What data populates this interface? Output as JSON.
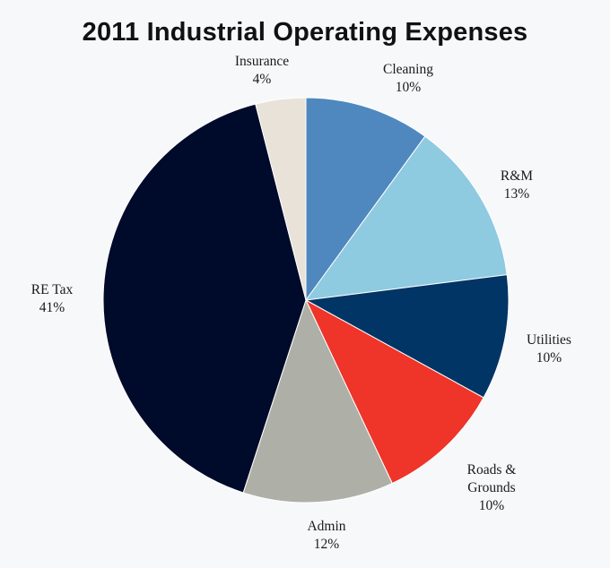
{
  "chart_data": {
    "type": "pie",
    "title": "2011 Industrial Operating Expenses",
    "start_angle_deg": 0,
    "direction": "clockwise",
    "slices": [
      {
        "label_lines": [
          "Cleaning"
        ],
        "percent_label": "10%",
        "value": 10,
        "color": "#4f88be"
      },
      {
        "label_lines": [
          "R&M"
        ],
        "percent_label": "13%",
        "value": 13,
        "color": "#8ecae0"
      },
      {
        "label_lines": [
          "Utilities"
        ],
        "percent_label": "10%",
        "value": 10,
        "color": "#003565"
      },
      {
        "label_lines": [
          "Roads &",
          "Grounds"
        ],
        "percent_label": "10%",
        "value": 10,
        "color": "#ef3429"
      },
      {
        "label_lines": [
          "Admin"
        ],
        "percent_label": "12%",
        "value": 12,
        "color": "#aeb0a8"
      },
      {
        "label_lines": [
          "RE Tax"
        ],
        "percent_label": "41%",
        "value": 41,
        "color": "#000a2a"
      },
      {
        "label_lines": [
          "Insurance"
        ],
        "percent_label": "4%",
        "value": 4,
        "color": "#e8e2d9"
      }
    ],
    "legend": "none"
  }
}
